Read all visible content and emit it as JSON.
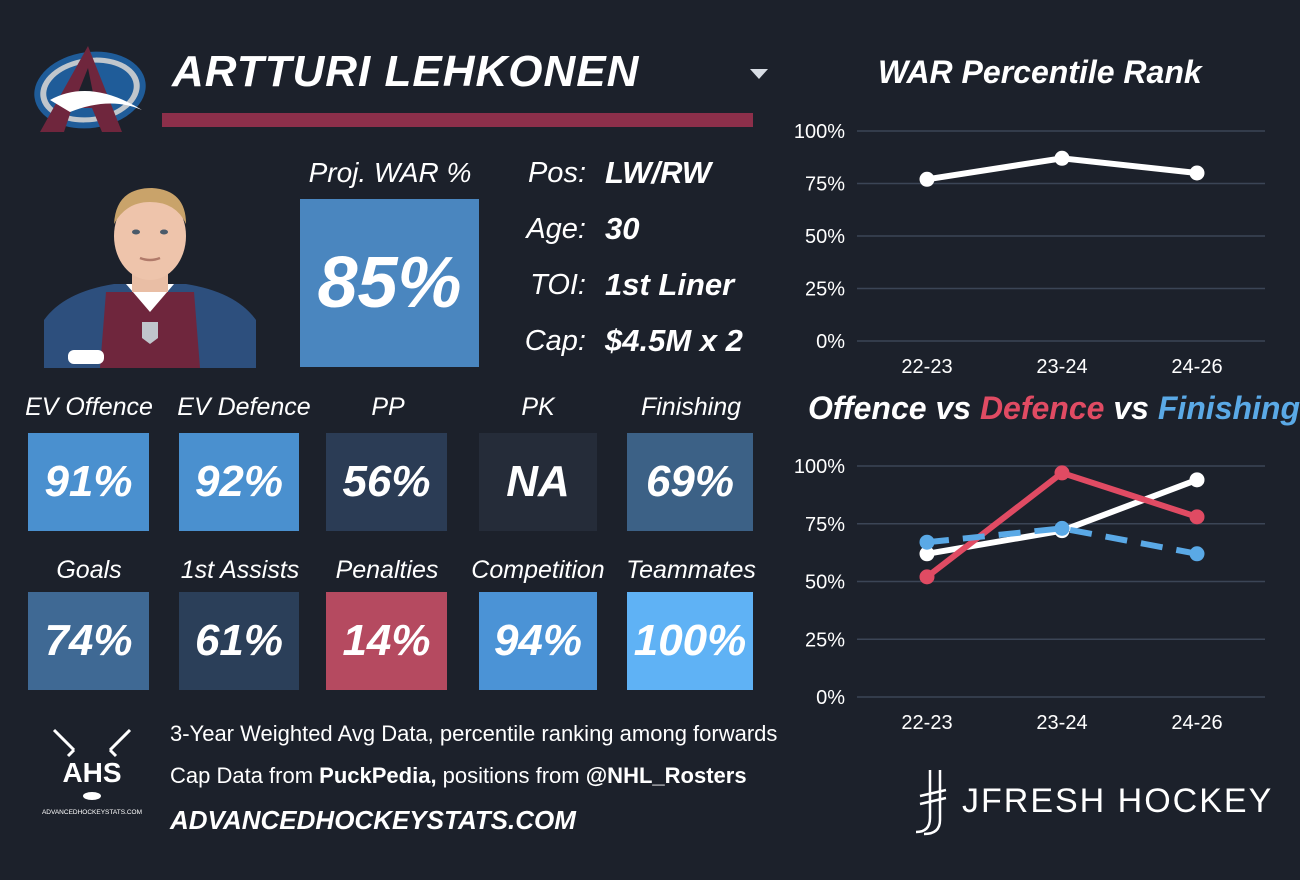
{
  "player": {
    "name": "ARTTURI LEHKONEN"
  },
  "projected": {
    "label": "Proj. WAR %",
    "value": "85%"
  },
  "bio": [
    {
      "label": "Pos:",
      "value": "LW/RW"
    },
    {
      "label": "Age:",
      "value": "30"
    },
    {
      "label": "TOI:",
      "value": "1st Liner"
    },
    {
      "label": "Cap:",
      "value": "$4.5M x 2"
    }
  ],
  "stats_row1": [
    {
      "label": "EV Offence",
      "value": "91%",
      "color": "#4a90cf"
    },
    {
      "label": "EV Defence",
      "value": "92%",
      "color": "#4a90cf"
    },
    {
      "label": "PP",
      "value": "56%",
      "color": "#2b3c55"
    },
    {
      "label": "PK",
      "value": "NA",
      "color": "#252c39"
    },
    {
      "label": "Finishing",
      "value": "69%",
      "color": "#3c6186"
    }
  ],
  "stats_row2": [
    {
      "label": "Goals",
      "value": "74%",
      "color": "#3f6994"
    },
    {
      "label": "1st Assists",
      "value": "61%",
      "color": "#2b3f59"
    },
    {
      "label": "Penalties",
      "value": "14%",
      "color": "#b54a60"
    },
    {
      "label": "Competition",
      "value": "94%",
      "color": "#4b93d6"
    },
    {
      "label": "Teammates",
      "value": "100%",
      "color": "#5fb2f5"
    }
  ],
  "footer": {
    "line1": "3-Year Weighted Avg Data, percentile ranking among forwards",
    "line2_prefix": "Cap Data from ",
    "line2_bold1": "PuckPedia,",
    "line2_mid": " positions from ",
    "line2_bold2": "@NHL_Rosters",
    "url": "ADVANCEDHOCKEYSTATS.COM",
    "ahs_logo_text": "AHS",
    "ahs_logo_subtext": "ADVANCEDHOCKEYSTATS.COM",
    "brand": "JFRESH HOCKEY"
  },
  "colors": {
    "background": "#1c212b",
    "accent": "#8c2f4a",
    "offence": "#ffffff",
    "defence": "#e04b63",
    "finishing": "#5aa9e6"
  },
  "icons": {
    "dropdown": "chevron-down-icon"
  },
  "chart_data": [
    {
      "type": "line",
      "title": "WAR Percentile Rank",
      "categories": [
        "22-23",
        "23-24",
        "24-26"
      ],
      "series": [
        {
          "values": [
            77,
            87,
            80
          ]
        }
      ],
      "ylim": [
        0,
        100
      ],
      "yticks": [
        "0%",
        "25%",
        "50%",
        "75%",
        "100%"
      ],
      "grid": true
    },
    {
      "type": "line",
      "title_parts": [
        "Offence",
        " vs ",
        "Defence",
        " vs ",
        "Finishing"
      ],
      "categories": [
        "22-23",
        "23-24",
        "24-26"
      ],
      "series": [
        {
          "name": "Offence",
          "values": [
            62,
            72,
            94
          ],
          "style": "solid"
        },
        {
          "name": "Defence",
          "values": [
            52,
            97,
            78
          ],
          "style": "solid"
        },
        {
          "name": "Finishing",
          "values": [
            67,
            73,
            62
          ],
          "style": "dashed"
        }
      ],
      "ylim": [
        0,
        100
      ],
      "yticks": [
        "0%",
        "25%",
        "50%",
        "75%",
        "100%"
      ],
      "grid": true
    }
  ]
}
